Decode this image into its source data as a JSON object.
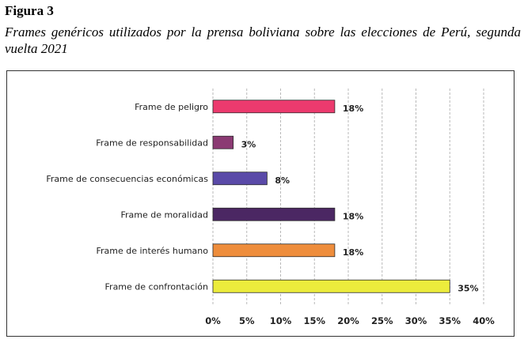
{
  "figure": {
    "label": "Figura 3",
    "caption": "Frames genéricos utilizados por la prensa boliviana sobre las elecciones de Perú, segunda vuelta 2021"
  },
  "chart_data": {
    "type": "bar",
    "orientation": "horizontal",
    "categories": [
      "Frame de peligro",
      "Frame de responsabilidad",
      "Frame de consecuencias económicas",
      "Frame de moralidad",
      "Frame de interés humano",
      "Frame de confrontación"
    ],
    "values": [
      18,
      3,
      8,
      18,
      18,
      35
    ],
    "value_labels": [
      "18%",
      "3%",
      "8%",
      "18%",
      "18%",
      "35%"
    ],
    "colors": [
      "#ec3a6e",
      "#8b3a73",
      "#5a4aa8",
      "#4b2763",
      "#ee8d3c",
      "#ecec3c"
    ],
    "xlim": [
      0,
      40
    ],
    "xticks": [
      0,
      5,
      10,
      15,
      20,
      25,
      30,
      35,
      40
    ],
    "xtick_labels": [
      "0%",
      "5%",
      "10%",
      "15%",
      "20%",
      "25%",
      "30%",
      "35%",
      "40%"
    ],
    "grid": "vertical-dashed",
    "title": "",
    "xlabel": "",
    "ylabel": ""
  }
}
